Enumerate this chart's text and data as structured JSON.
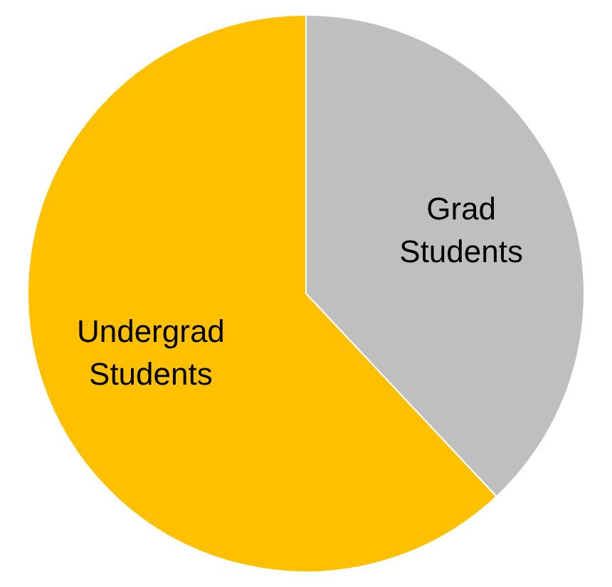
{
  "chart_data": {
    "type": "pie",
    "categories": [
      "Grad Students",
      "Undergrad Students"
    ],
    "values": [
      38,
      62
    ],
    "colors": [
      "#bfbfbf",
      "#ffc000"
    ],
    "legend": false
  }
}
